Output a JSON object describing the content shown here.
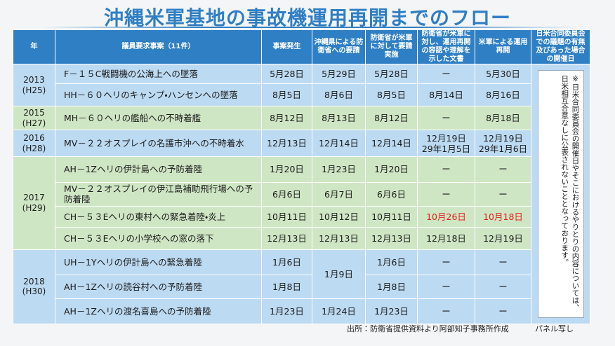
{
  "header": {
    "title": "沖縄米軍基地の事故機運用再開までのフロー"
  },
  "table": {
    "columns": [
      "年",
      "議員要求事案（11件）",
      "事案発生",
      "沖縄県による防衛省への要請",
      "防衛省が米軍に対して要請実施",
      "防衛省が米軍に対し、運用再開の容認や理解を示した文書",
      "米軍による運用再開",
      "日米合同委員会での議題の有無及びあった場合の開催日"
    ],
    "years": [
      {
        "year": "2013",
        "era": "(H25)"
      },
      {
        "year": "2015",
        "era": "(H27)"
      },
      {
        "year": "2016",
        "era": "(H28)"
      },
      {
        "year": "2017",
        "era": "(H29)"
      },
      {
        "year": "2018",
        "era": "(H30)"
      }
    ],
    "rows": [
      {
        "event": "F－１５C戦闘機の公海上への墜落",
        "occurred": "5月28日",
        "okinawa_request": "5月29日",
        "mod_request": "5月28日",
        "document": "ー",
        "resumed": "5月30日"
      },
      {
        "event": "HH－６０ヘリのキャンプ・ハンセンへの墜落",
        "occurred": "8月5日",
        "okinawa_request": "8月6日",
        "mod_request": "8月5日",
        "document": "8月14日",
        "resumed": "8月16日"
      },
      {
        "event": "MH－６０ヘリの艦船への不時着艦",
        "occurred": "8月12日",
        "okinawa_request": "8月13日",
        "mod_request": "8月12日",
        "document": "ー",
        "resumed": "8月18日"
      },
      {
        "event": "MV－２２オスプレイの名護市沖への不時着水",
        "occurred": "12月13日",
        "okinawa_request": "12月14日",
        "mod_request": "12月14日",
        "document": "12月19日\n29年1月5日",
        "resumed": "12月19日\n29年1月6日"
      },
      {
        "event": "AH－1Zヘリの伊計島への予防着陸",
        "occurred": "1月20日",
        "okinawa_request": "1月23日",
        "mod_request": "1月20日",
        "document": "ー",
        "resumed": "ー"
      },
      {
        "event": "MV－２２オスプレイの伊江島補助飛行場への予防着陸",
        "occurred": "6月6日",
        "okinawa_request": "6月7日",
        "mod_request": "6月6日",
        "document": "ー",
        "resumed": "ー"
      },
      {
        "event": "CH－５３Eヘリの東村への緊急着陸・炎上",
        "occurred": "10月11日",
        "okinawa_request": "10月12日",
        "mod_request": "10月11日",
        "document": "10月26日",
        "resumed": "10月18日"
      },
      {
        "event": "CH－５３Eヘリの小学校への窓の落下",
        "occurred": "12月13日",
        "okinawa_request": "12月13日",
        "mod_request": "12月13日",
        "document": "12月18日",
        "resumed": "12月19日"
      },
      {
        "event": "UH－1Yヘリの伊計島への緊急着陸",
        "occurred": "1月6日",
        "okinawa_request": "1月9日",
        "mod_request": "1月6日",
        "document": "ー",
        "resumed": "ー"
      },
      {
        "event": "AH－1Zヘリの読谷村への予防着陸",
        "occurred": "1月8日",
        "mod_request": "1月8日",
        "document": "ー",
        "resumed": "ー"
      },
      {
        "event": "AH－1Zヘリの渡名喜島への予防着陸",
        "occurred": "1月23日",
        "okinawa_request": "1月24日",
        "mod_request": "1月23日",
        "document": "ー",
        "resumed": "ー"
      }
    ],
    "note": "※日米合同委員会の開催日やそこにおけるやりとりの内容については、日米相互合意なしに公表されないこととなっております。"
  },
  "footer": {
    "source": "出所：防衛省提供資料より阿部知子事務所作成",
    "caption": "パネル写し"
  }
}
